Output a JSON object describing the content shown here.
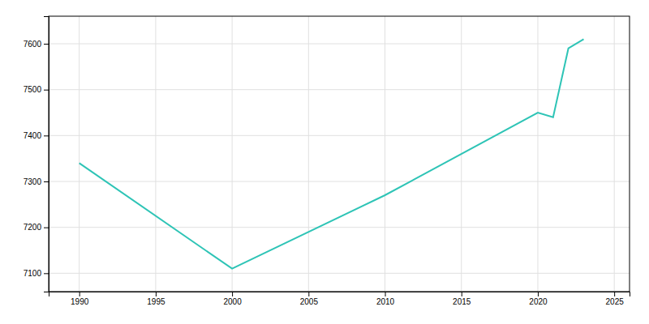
{
  "chart_data": {
    "type": "line",
    "x": [
      1990,
      2000,
      2010,
      2020,
      2021,
      2022,
      2023
    ],
    "values": [
      7340,
      7110,
      7270,
      7450,
      7440,
      7590,
      7610
    ],
    "color": "#2EC4B6",
    "xlim": [
      1988,
      2026
    ],
    "ylim": [
      7060,
      7660
    ],
    "xticks": [
      1990,
      1995,
      2000,
      2005,
      2010,
      2015,
      2020,
      2025
    ],
    "yticks": [
      7100,
      7200,
      7300,
      7400,
      7500,
      7600
    ],
    "grid": true
  }
}
